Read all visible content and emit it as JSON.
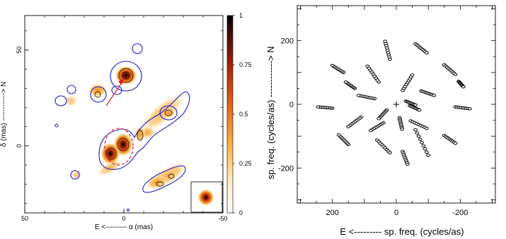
{
  "chart_data": [
    {
      "type": "heatmap",
      "xlabel": "E <--------- α (mas)",
      "ylabel": "δ (mas) ------------> N",
      "xlim": [
        50,
        -50
      ],
      "ylim": [
        -35,
        68
      ],
      "xticks": [
        50,
        0,
        -50
      ],
      "yticks": [
        0,
        50
      ],
      "colorbar": {
        "min": 0,
        "max": 1,
        "ticks": [
          "0",
          "0.25",
          "0.5",
          "0.75",
          "1"
        ]
      },
      "components": [
        {
          "x": 0,
          "y": 34,
          "peak": 1.0
        },
        {
          "x": 1,
          "y": 0,
          "peak": 0.95
        },
        {
          "x": 6,
          "y": -5,
          "peak": 0.85
        },
        {
          "x": -8,
          "y": 5,
          "peak": 0.4
        },
        {
          "x": -22,
          "y": 15,
          "peak": 0.35
        },
        {
          "x": -28,
          "y": 20,
          "peak": 0.2
        },
        {
          "x": 15,
          "y": 25,
          "peak": 0.3
        },
        {
          "x": -18,
          "y": -20,
          "peak": 0.35
        },
        {
          "x": -28,
          "y": -14,
          "peak": 0.25
        },
        {
          "x": -5,
          "y": 48,
          "peak": 0.1
        },
        {
          "x": 26,
          "y": 28,
          "peak": 0.1
        },
        {
          "x": 33,
          "y": 23,
          "peak": 0.1
        },
        {
          "x": 25,
          "y": -15,
          "peak": 0.15
        },
        {
          "x": 12,
          "y": -7,
          "peak": 0.3
        }
      ]
    },
    {
      "type": "scatter",
      "xlabel": "E <--------- sp. freq. (cycles/as)",
      "ylabel": "sp. freq. (cycles/as) ------------> N",
      "xlim": [
        310,
        -310
      ],
      "ylim": [
        -310,
        310
      ],
      "xticks": [
        200,
        0,
        -200
      ],
      "yticks": [
        -200,
        0,
        200
      ],
      "tracks": [
        {
          "u": [
            -60,
            -95
          ],
          "v": [
            190,
            162
          ]
        },
        {
          "u": [
            -150,
            -185
          ],
          "v": [
            124,
            94
          ]
        },
        {
          "u": [
            -195,
            -210
          ],
          "v": [
            72,
            55
          ]
        },
        {
          "u": [
            -185,
            -230
          ],
          "v": [
            -8,
            -14
          ]
        },
        {
          "u": [
            -150,
            -185
          ],
          "v": [
            -98,
            -122
          ]
        },
        {
          "u": [
            -60,
            -100
          ],
          "v": [
            -80,
            -160
          ]
        },
        {
          "u": [
            -20,
            -35
          ],
          "v": [
            -148,
            -188
          ]
        },
        {
          "u": [
            60,
            20
          ],
          "v": [
            -112,
            -152
          ]
        },
        {
          "u": [
            150,
            180
          ],
          "v": [
            -126,
            -96
          ]
        },
        {
          "u": [
            200,
            245
          ],
          "v": [
            -12,
            -8
          ]
        },
        {
          "u": [
            165,
            200
          ],
          "v": [
            100,
            122
          ]
        },
        {
          "u": [
            55,
            90
          ],
          "v": [
            70,
            120
          ]
        },
        {
          "u": [
            20,
            35
          ],
          "v": [
            142,
            198
          ]
        },
        {
          "u": [
            -20,
            -50
          ],
          "v": [
            44,
            92
          ]
        },
        {
          "u": [
            -78,
            -118
          ],
          "v": [
            42,
            28
          ]
        },
        {
          "u": [
            -42,
            -72
          ],
          "v": [
            -4,
            -18
          ]
        },
        {
          "u": [
            68,
            118
          ],
          "v": [
            18,
            28
          ]
        },
        {
          "u": [
            30,
            55
          ],
          "v": [
            -18,
            -45
          ]
        },
        {
          "u": [
            -10,
            -18
          ],
          "v": [
            -42,
            -78
          ]
        },
        {
          "u": [
            -45,
            -95
          ],
          "v": [
            -52,
            -75
          ]
        },
        {
          "u": [
            40,
            80
          ],
          "v": [
            -58,
            -82
          ]
        },
        {
          "u": [
            -30,
            -60
          ],
          "v": [
            10,
            -2
          ]
        },
        {
          "u": [
            130,
            158
          ],
          "v": [
            50,
            70
          ]
        },
        {
          "u": [
            110,
            150
          ],
          "v": [
            -40,
            -70
          ]
        }
      ]
    }
  ]
}
